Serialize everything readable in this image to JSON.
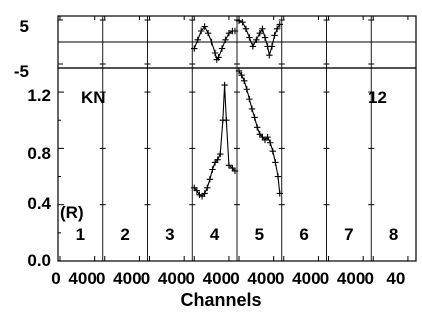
{
  "chart_data": {
    "type": "line",
    "xlabel": "Channels",
    "panel_ticks": [
      "0",
      "400"
    ],
    "last_panel_ticks": [
      "0",
      "40"
    ],
    "annotations": {
      "top_left": "KN",
      "top_right": "12",
      "ratio_marker": "(R)"
    },
    "panels": [
      {
        "label": "1",
        "residual": [],
        "ratio": []
      },
      {
        "label": "2",
        "residual": [],
        "ratio": []
      },
      {
        "label": "3",
        "residual": [],
        "ratio": []
      },
      {
        "label": "4",
        "residual": [
          [
            0,
            -1.5
          ],
          [
            40,
            0.5
          ],
          [
            80,
            2.5
          ],
          [
            120,
            3.5
          ],
          [
            160,
            2
          ],
          [
            200,
            0
          ],
          [
            240,
            -2.5
          ],
          [
            260,
            -4
          ],
          [
            280,
            -3.5
          ],
          [
            320,
            -1.5
          ],
          [
            360,
            0.5
          ],
          [
            400,
            2
          ],
          [
            440,
            2.5
          ],
          [
            470,
            2.5
          ]
        ],
        "ratio": [
          [
            0,
            0.52
          ],
          [
            30,
            0.5
          ],
          [
            60,
            0.47
          ],
          [
            90,
            0.46
          ],
          [
            120,
            0.48
          ],
          [
            150,
            0.52
          ],
          [
            180,
            0.58
          ],
          [
            210,
            0.65
          ],
          [
            240,
            0.7
          ],
          [
            270,
            0.72
          ],
          [
            300,
            0.76
          ],
          [
            330,
            1.0
          ],
          [
            350,
            1.25
          ],
          [
            370,
            1.0
          ],
          [
            400,
            0.68
          ],
          [
            440,
            0.66
          ],
          [
            470,
            0.64
          ]
        ]
      },
      {
        "label": "5",
        "residual": [
          [
            0,
            4.8
          ],
          [
            40,
            4.5
          ],
          [
            80,
            3
          ],
          [
            120,
            1
          ],
          [
            160,
            -1
          ],
          [
            200,
            0.5
          ],
          [
            240,
            2
          ],
          [
            270,
            3
          ],
          [
            300,
            1
          ],
          [
            330,
            -1
          ],
          [
            350,
            -3
          ],
          [
            380,
            -1
          ],
          [
            410,
            1.5
          ],
          [
            440,
            3
          ],
          [
            470,
            4
          ]
        ],
        "ratio": [
          [
            0,
            1.35
          ],
          [
            30,
            1.32
          ],
          [
            60,
            1.28
          ],
          [
            90,
            1.22
          ],
          [
            120,
            1.15
          ],
          [
            150,
            1.08
          ],
          [
            180,
            1.02
          ],
          [
            210,
            0.95
          ],
          [
            240,
            0.9
          ],
          [
            270,
            0.88
          ],
          [
            300,
            0.86
          ],
          [
            330,
            0.88
          ],
          [
            360,
            0.84
          ],
          [
            390,
            0.78
          ],
          [
            420,
            0.7
          ],
          [
            450,
            0.6
          ],
          [
            470,
            0.48
          ]
        ]
      },
      {
        "label": "6",
        "residual": [],
        "ratio": []
      },
      {
        "label": "7",
        "residual": [],
        "ratio": []
      },
      {
        "label": "8",
        "residual": [],
        "ratio": []
      }
    ],
    "top_panel": {
      "y_ticks": [
        "5",
        "-5"
      ],
      "ylim": [
        -5,
        5
      ],
      "zero_line": 0
    },
    "bottom_panel": {
      "y_ticks": [
        "1.2",
        "0.8",
        "0.4",
        "0.0"
      ],
      "ylim": [
        0,
        1.3
      ]
    },
    "x_range_per_panel": [
      0,
      470
    ]
  }
}
